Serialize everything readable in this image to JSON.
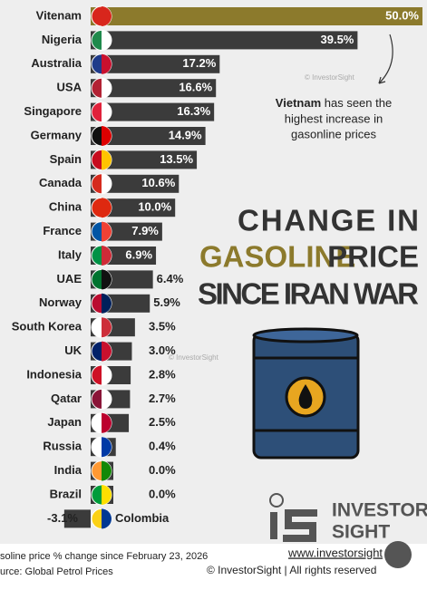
{
  "chart_data": {
    "type": "bar",
    "categories": [
      "Vitenam",
      "Nigeria",
      "Australia",
      "USA",
      "Singapore",
      "Germany",
      "Spain",
      "Canada",
      "China",
      "France",
      "Italy",
      "UAE",
      "Norway",
      "South Korea",
      "UK",
      "Indonesia",
      "Qatar",
      "Japan",
      "Russia",
      "India",
      "Brazil",
      "Colombia"
    ],
    "values": [
      50.0,
      39.5,
      17.2,
      16.6,
      16.3,
      14.9,
      13.5,
      10.6,
      10.0,
      7.9,
      6.9,
      6.4,
      5.9,
      3.5,
      3.0,
      2.8,
      2.7,
      2.5,
      0.4,
      0.0,
      0.0,
      -3.1
    ],
    "value_labels": [
      "50.0%",
      "39.5%",
      "17.2%",
      "16.6%",
      "16.3%",
      "14.9%",
      "13.5%",
      "10.6%",
      "10.0%",
      "7.9%",
      "6.9%",
      "6.4%",
      "5.9%",
      "3.5%",
      "3.0%",
      "2.8%",
      "2.7%",
      "2.5%",
      "0.4%",
      "0.0%",
      "0.0%",
      "-3.1%"
    ],
    "highlight_color": "#8c7a2c",
    "color": "#3b3b3b",
    "title": [
      "CHANGE IN",
      "GASOLINE",
      "PRICE",
      "SINCE IRAN WAR"
    ],
    "annotation": [
      "Vietnam",
      " has seen the",
      "highest increase in",
      "gasonline prices"
    ],
    "watermark": "© InvestorSight",
    "logo": [
      "INVESTOR",
      "SIGHT"
    ],
    "website": "www.investorsight",
    "footnote": "soline price % change since February 23, 2026",
    "source": "urce: Global Petrol Prices",
    "copyright": "© InvestorSight |  All rights reserved"
  }
}
